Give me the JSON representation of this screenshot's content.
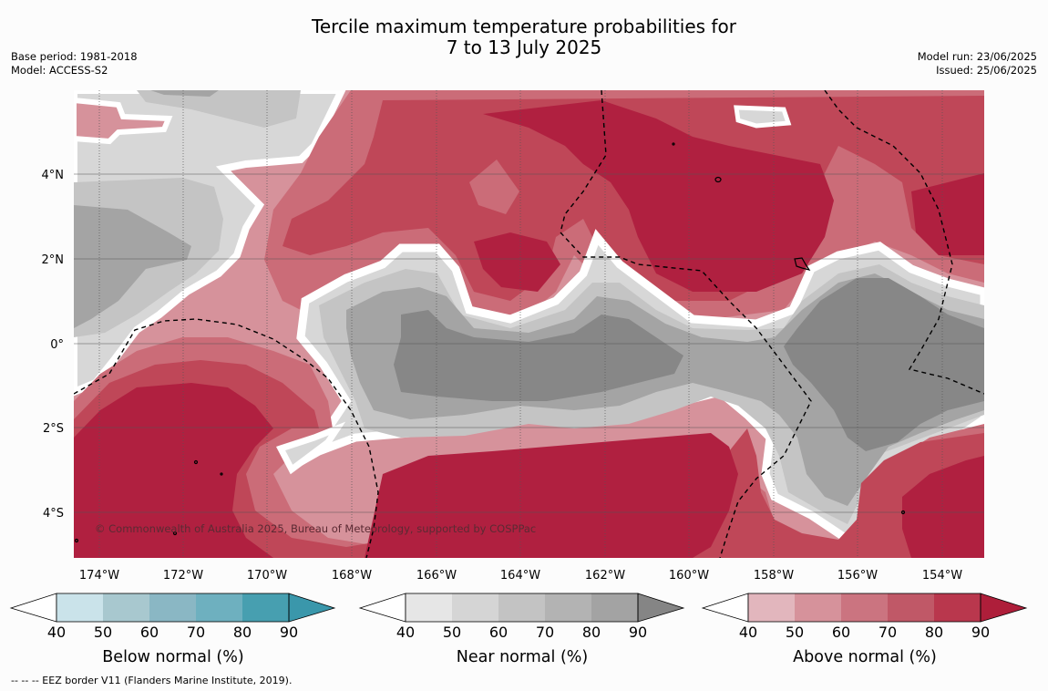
{
  "title": {
    "line1": "Tercile maximum temperature probabilities for",
    "line2": "7 to 13 July 2025"
  },
  "meta_left": {
    "base_period": "Base period: 1981-2018",
    "model": "Model: ACCESS-S2"
  },
  "meta_right": {
    "model_run": "Model run: 23/06/2025",
    "issued": "Issued: 25/06/2025"
  },
  "copyright": "© Commonwealth of Australia 2025, Bureau of Meteorology, supported by COSPPac",
  "footnote": "--  --  -- EEZ border V11 (Flanders Marine Institute, 2019).",
  "map": {
    "lon_range": [
      -174.6,
      -152.9
    ],
    "lat_range": [
      -5.0,
      6.0
    ],
    "lon_ticks": [
      {
        "value": -174,
        "label": "174°W"
      },
      {
        "value": -172,
        "label": "172°W"
      },
      {
        "value": -170,
        "label": "170°W"
      },
      {
        "value": -168,
        "label": "168°W"
      },
      {
        "value": -166,
        "label": "166°W"
      },
      {
        "value": -164,
        "label": "164°W"
      },
      {
        "value": -162,
        "label": "162°W"
      },
      {
        "value": -160,
        "label": "160°W"
      },
      {
        "value": -158,
        "label": "158°W"
      },
      {
        "value": -156,
        "label": "156°W"
      },
      {
        "value": -154,
        "label": "154°W"
      }
    ],
    "lat_ticks": [
      {
        "value": 4,
        "label": "4°N"
      },
      {
        "value": 2,
        "label": "2°N"
      },
      {
        "value": 0,
        "label": "0°"
      },
      {
        "value": -2,
        "label": "2°S"
      },
      {
        "value": -4,
        "label": "4°S"
      }
    ]
  },
  "colorbars": [
    {
      "id": "below",
      "title": "Below normal (%)",
      "ticks": [
        "40",
        "50",
        "60",
        "70",
        "80",
        "90"
      ],
      "colors": [
        "#ffffff",
        "#cae3ea",
        "#a8c8cf",
        "#8ab7c4",
        "#6eb0bf",
        "#479fb0",
        "#3a97ab"
      ]
    },
    {
      "id": "near",
      "title": "Near normal (%)",
      "ticks": [
        "40",
        "50",
        "60",
        "70",
        "80",
        "90"
      ],
      "colors": [
        "#ffffff",
        "#e6e6e6",
        "#d5d5d5",
        "#c3c3c3",
        "#b3b3b3",
        "#a3a3a3",
        "#858585"
      ]
    },
    {
      "id": "above",
      "title": "Above normal (%)",
      "ticks": [
        "40",
        "50",
        "60",
        "70",
        "80",
        "90"
      ],
      "colors": [
        "#ffffff",
        "#e2b6bd",
        "#d6929b",
        "#cb7480",
        "#c05867",
        "#b9374d",
        "#ae1e3a"
      ]
    }
  ],
  "colors": {
    "white": "#ffffff",
    "near_40": "#d7d7d7",
    "near_50": "#c4c4c4",
    "near_60": "#a4a4a4",
    "near_70": "#878787",
    "above_40": "#d6929b",
    "above_50": "#cb6c78",
    "above_60": "#bf4758",
    "above_70": "#b02040"
  }
}
